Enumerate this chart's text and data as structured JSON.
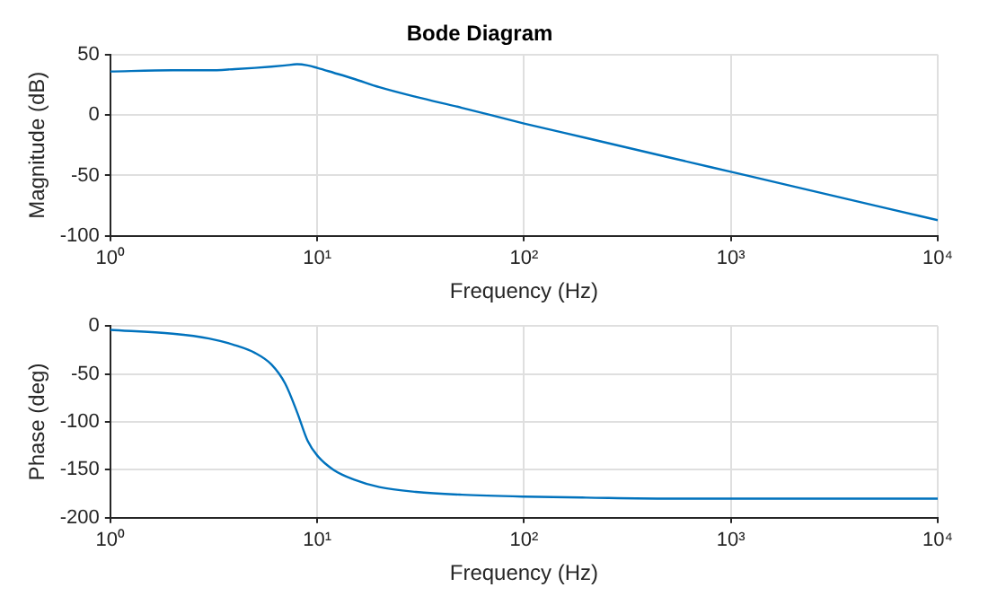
{
  "chart_data": [
    {
      "type": "line",
      "title": "Bode Diagram",
      "xlabel": "Frequency (Hz)",
      "ylabel": "Magnitude (dB)",
      "log": "x",
      "grid": true,
      "marker": "none",
      "line_style": "solid",
      "x": [
        1,
        2,
        3,
        4,
        5,
        6,
        7,
        8,
        9,
        10,
        12,
        15,
        20,
        30,
        50,
        100,
        200,
        500,
        1000,
        2000,
        5000,
        10000
      ],
      "series": [
        {
          "color": "#0072bd",
          "values": [
            36,
            37,
            37,
            38,
            39,
            40,
            41,
            42,
            41,
            39,
            35,
            30,
            23,
            15,
            6,
            -7,
            -19,
            -35,
            -47,
            -59,
            -75,
            -87
          ]
        }
      ],
      "xlim": [
        1,
        10000
      ],
      "xticks": [
        {
          "value": 1,
          "label": "10⁰"
        },
        {
          "value": 10,
          "label": "10¹"
        },
        {
          "value": 100,
          "label": "10²"
        },
        {
          "value": 1000,
          "label": "10³"
        },
        {
          "value": 10000,
          "label": "10⁴"
        }
      ],
      "ylim": [
        -100,
        50
      ],
      "yticks": [
        -100,
        -50,
        0,
        50
      ]
    },
    {
      "type": "line",
      "xlabel": "Frequency (Hz)",
      "ylabel": "Phase (deg)",
      "log": "x",
      "grid": true,
      "marker": "none",
      "line_style": "solid",
      "x": [
        1,
        2,
        3,
        4,
        5,
        6,
        7,
        8,
        9,
        10,
        12,
        15,
        20,
        30,
        50,
        100,
        200,
        500,
        1000,
        2000,
        5000,
        10000
      ],
      "series": [
        {
          "color": "#0072bd",
          "values": [
            -4,
            -8,
            -13,
            -20,
            -28,
            -40,
            -60,
            -90,
            -120,
            -135,
            -150,
            -160,
            -168,
            -173,
            -176,
            -178,
            -179,
            -180,
            -180,
            -180,
            -180,
            -180
          ]
        }
      ],
      "xlim": [
        1,
        10000
      ],
      "xticks": [
        {
          "value": 1,
          "label": "10⁰"
        },
        {
          "value": 10,
          "label": "10¹"
        },
        {
          "value": 100,
          "label": "10²"
        },
        {
          "value": 1000,
          "label": "10³"
        },
        {
          "value": 10000,
          "label": "10⁴"
        }
      ],
      "ylim": [
        -200,
        0
      ],
      "yticks": [
        -200,
        -150,
        -100,
        -50,
        0
      ]
    }
  ]
}
